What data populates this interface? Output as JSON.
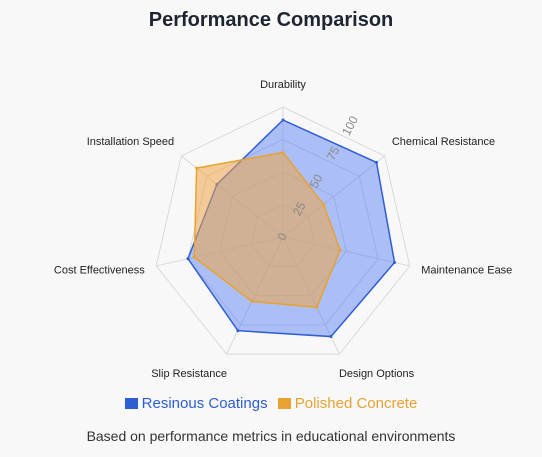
{
  "title": "Performance Comparison",
  "caption": "Based on performance metrics in educational environments",
  "colors": {
    "series_0": "#2e5ed6",
    "series_1": "#e8a232",
    "grid": "#d9d9d9",
    "tick": "#888888"
  },
  "chart_data": {
    "type": "radar",
    "categories": [
      "Durability",
      "Chemical Resistance",
      "Maintenance Ease",
      "Design Options",
      "Slip Resistance",
      "Cost Effectiveness",
      "Installation Speed"
    ],
    "scale": {
      "min": 0,
      "max": 100,
      "ticks": [
        0,
        25,
        50,
        75,
        100
      ]
    },
    "series": [
      {
        "name": "Resinous Coatings",
        "values": [
          90,
          92,
          88,
          85,
          80,
          75,
          65
        ]
      },
      {
        "name": "Polished Concrete",
        "values": [
          65,
          40,
          45,
          60,
          55,
          70,
          85
        ]
      }
    ],
    "legend_position": "bottom",
    "grid": true
  }
}
